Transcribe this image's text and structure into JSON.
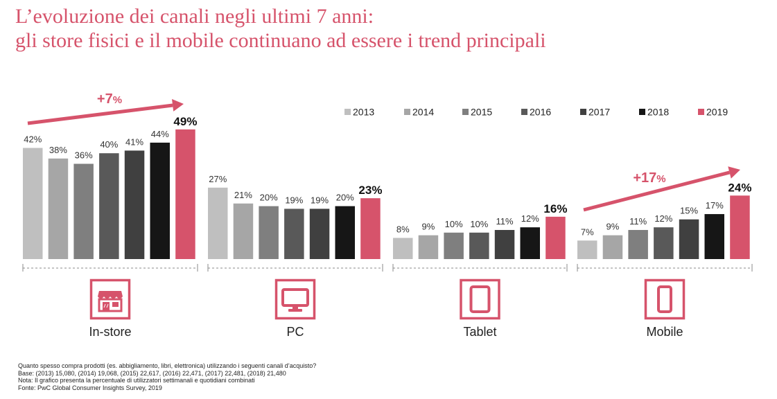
{
  "title_line1": "L’evoluzione dei canali negli ultimi 7 anni:",
  "title_line2": "gli store fisici e il mobile continuano ad essere i trend principali",
  "chart_data": {
    "type": "bar",
    "categories": [
      "In-store",
      "PC",
      "Tablet",
      "Mobile"
    ],
    "series": [
      {
        "name": "2013",
        "values": [
          42,
          27,
          8,
          7
        ],
        "color": "#bfbfbf"
      },
      {
        "name": "2014",
        "values": [
          38,
          21,
          9,
          9
        ],
        "color": "#a6a6a6"
      },
      {
        "name": "2015",
        "values": [
          36,
          20,
          10,
          11
        ],
        "color": "#7f7f7f"
      },
      {
        "name": "2016",
        "values": [
          40,
          19,
          10,
          12
        ],
        "color": "#595959"
      },
      {
        "name": "2017",
        "values": [
          41,
          19,
          11,
          15
        ],
        "color": "#404040"
      },
      {
        "name": "2018",
        "values": [
          44,
          20,
          12,
          17
        ],
        "color": "#161616"
      },
      {
        "name": "2019",
        "values": [
          49,
          23,
          16,
          24
        ],
        "color": "#d6536b"
      }
    ],
    "value_labels": [
      [
        "42%",
        "38%",
        "36%",
        "40%",
        "41%",
        "44%",
        "49%"
      ],
      [
        "27%",
        "21%",
        "20%",
        "19%",
        "19%",
        "20%",
        "23%"
      ],
      [
        "8%",
        "9%",
        "10%",
        "10%",
        "11%",
        "12%",
        "16%"
      ],
      [
        "7%",
        "9%",
        "11%",
        "12%",
        "15%",
        "17%",
        "24%"
      ]
    ],
    "ylim": [
      0,
      49
    ],
    "legend_position": "top-right",
    "annotations": [
      {
        "group": "In-store",
        "text_main": "+7",
        "text_suffix": "%"
      },
      {
        "group": "Mobile",
        "text_main": "+17",
        "text_suffix": "%"
      }
    ],
    "icons": [
      "store-icon",
      "monitor-icon",
      "tablet-icon",
      "smartphone-icon"
    ]
  },
  "colors": {
    "accent": "#d6536b",
    "axis": "#666666"
  },
  "footnotes": [
    "Quanto spesso compra prodotti (es. abbigliamento, libri, elettronica) utilizzando i seguenti canali d’acquisto?",
    "Base: (2013) 15,080, (2014) 19,068, (2015) 22,617, (2016) 22,471, (2017) 22,481, (2018) 21,480",
    "Nota: Il grafico presenta la percentuale di utilizzatori settimanali e quotidiani combinati",
    "Fonte: PwC Global Consumer Insights Survey, 2019"
  ]
}
